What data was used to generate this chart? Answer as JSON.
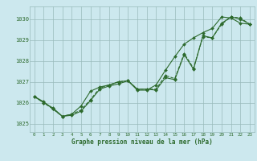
{
  "title": "Graphe pression niveau de la mer (hPa)",
  "xlabel_hours": [
    0,
    1,
    2,
    3,
    4,
    5,
    6,
    7,
    8,
    9,
    10,
    11,
    12,
    13,
    14,
    15,
    16,
    17,
    18,
    19,
    20,
    21,
    22,
    23
  ],
  "ylim": [
    1024.6,
    1030.6
  ],
  "yticks": [
    1025,
    1026,
    1027,
    1028,
    1029,
    1030
  ],
  "background_color": "#cce8ee",
  "grid_color": "#99bbbb",
  "line_color": "#2d6a2d",
  "line1": [
    1026.3,
    1026.0,
    1025.75,
    1025.35,
    1025.4,
    1025.6,
    1026.1,
    1026.65,
    1026.8,
    1026.9,
    1027.05,
    1026.65,
    1026.65,
    1026.6,
    1027.2,
    1027.1,
    1028.3,
    1027.6,
    1029.2,
    1029.1,
    1029.8,
    1030.1,
    1030.0,
    1029.75
  ],
  "line2": [
    1026.3,
    1026.05,
    1025.7,
    1025.35,
    1025.45,
    1025.85,
    1026.55,
    1026.75,
    1026.85,
    1027.0,
    1027.05,
    1026.6,
    1026.6,
    1026.85,
    1027.55,
    1028.2,
    1028.8,
    1029.1,
    1029.35,
    1029.55,
    1030.1,
    1030.05,
    1029.8,
    1029.75
  ],
  "line3": [
    1026.3,
    1026.0,
    1025.7,
    1025.35,
    1025.45,
    1025.65,
    1026.15,
    1026.7,
    1026.85,
    1027.0,
    1027.05,
    1026.65,
    1026.65,
    1026.65,
    1027.3,
    1027.15,
    1028.35,
    1027.65,
    1029.15,
    1029.1,
    1029.75,
    1030.1,
    1030.05,
    1029.75
  ],
  "figsize": [
    3.2,
    2.0
  ],
  "dpi": 100
}
